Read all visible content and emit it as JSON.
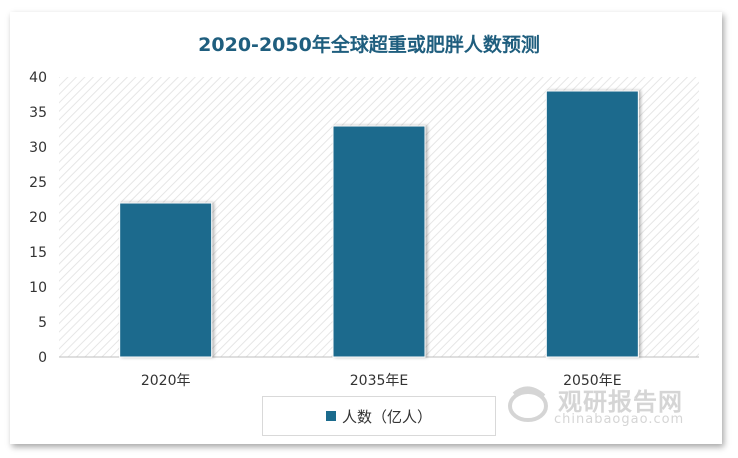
{
  "chart_data": {
    "type": "bar",
    "title": "2020-2050年全球超重或肥胖人数预测",
    "categories": [
      "2020年",
      "2035年E",
      "2050年E"
    ],
    "series": [
      {
        "name": "人数（亿人）",
        "values": [
          22,
          33,
          38
        ]
      }
    ],
    "ylim": [
      0,
      40
    ],
    "yticks": [
      0,
      5,
      10,
      15,
      20,
      25,
      30,
      35,
      40
    ],
    "grid": false,
    "legend": "bottom",
    "bar_color": "#1b6b8d",
    "plot_background": "diagonal-hatch"
  },
  "watermark": {
    "name": "观研报告网",
    "url": "chinabaogao.com"
  }
}
